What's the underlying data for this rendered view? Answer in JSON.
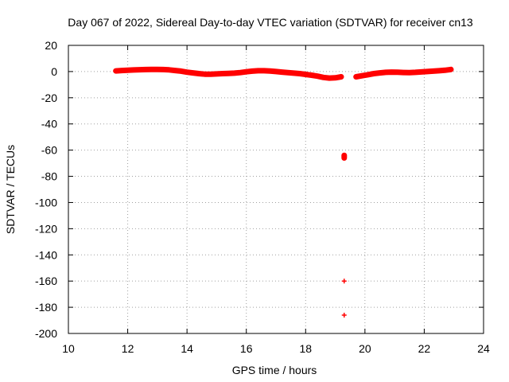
{
  "chart_data": {
    "type": "scatter",
    "title": "Day 067 of 2022, Sidereal Day-to-day VTEC variation (SDTVAR) for receiver cn13",
    "xlabel": "GPS time / hours",
    "ylabel": "SDTVAR / TECUs",
    "xlim": [
      10,
      24
    ],
    "ylim": [
      -200,
      20
    ],
    "x_ticks": [
      10,
      12,
      14,
      16,
      18,
      20,
      22,
      24
    ],
    "y_ticks": [
      20,
      0,
      -20,
      -40,
      -60,
      -80,
      -100,
      -120,
      -140,
      -160,
      -180,
      -200
    ],
    "grid": true,
    "series": [
      {
        "name": "SDTVAR",
        "color": "#ff0000",
        "marker": "plus",
        "x": [
          11.6,
          11.8,
          12.0,
          12.2,
          12.4,
          12.6,
          12.8,
          13.0,
          13.2,
          13.4,
          13.6,
          13.8,
          14.0,
          14.2,
          14.4,
          14.6,
          14.8,
          15.0,
          15.2,
          15.4,
          15.6,
          15.8,
          16.0,
          16.2,
          16.4,
          16.6,
          16.8,
          17.0,
          17.2,
          17.4,
          17.6,
          17.8,
          18.0,
          18.2,
          18.4,
          18.6,
          18.8,
          19.0,
          19.2,
          19.3,
          19.3,
          19.3,
          19.3,
          19.7,
          19.9,
          20.1,
          20.3,
          20.5,
          20.7,
          20.9,
          21.1,
          21.3,
          21.5,
          21.7,
          21.9,
          22.1,
          22.3,
          22.5,
          22.7,
          22.9
        ],
        "y": [
          0.5,
          0.8,
          1.0,
          1.2,
          1.4,
          1.5,
          1.6,
          1.6,
          1.5,
          1.3,
          0.8,
          0.3,
          -0.5,
          -1.0,
          -1.6,
          -2.0,
          -2.0,
          -1.8,
          -1.6,
          -1.4,
          -1.2,
          -0.8,
          -0.2,
          0.3,
          0.6,
          0.6,
          0.4,
          0.0,
          -0.4,
          -0.8,
          -1.2,
          -1.6,
          -2.2,
          -2.8,
          -3.5,
          -4.5,
          -5.0,
          -4.8,
          -4.0,
          -64,
          -66,
          -160,
          -186,
          -4.0,
          -3.2,
          -2.4,
          -1.6,
          -1.0,
          -0.6,
          -0.4,
          -0.5,
          -0.7,
          -0.8,
          -0.6,
          -0.3,
          0.0,
          0.3,
          0.6,
          1.0,
          1.6
        ]
      }
    ]
  }
}
